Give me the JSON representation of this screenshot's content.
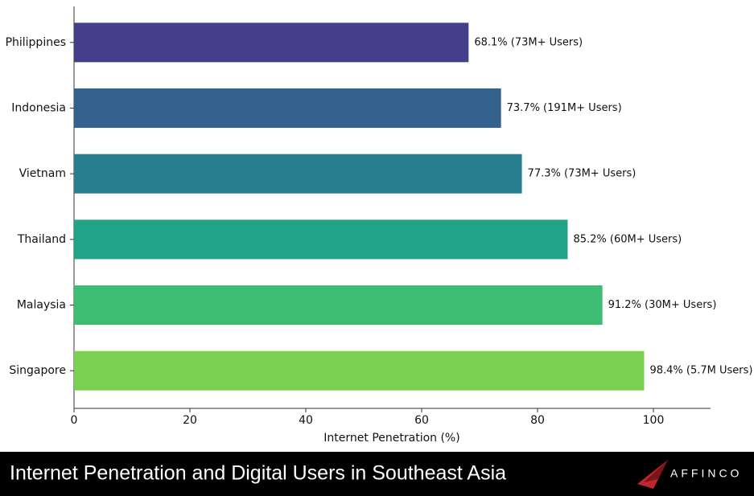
{
  "chart_data": {
    "type": "barh",
    "title": "Internet Penetration and Digital Users in Southeast Asia",
    "xlabel": "Internet Penetration (%)",
    "categories": [
      "Philippines",
      "Indonesia",
      "Vietnam",
      "Thailand",
      "Malaysia",
      "Singapore"
    ],
    "values": [
      68.1,
      73.7,
      77.3,
      85.2,
      91.2,
      98.4
    ],
    "value_labels": [
      "68.1% (73M+ Users)",
      "73.7% (191M+ Users)",
      "77.3% (73M+ Users)",
      "85.2% (60M+ Users)",
      "91.2% (30M+ Users)",
      "98.4% (5.7M Users)"
    ],
    "colors": [
      "#443f8a",
      "#33638d",
      "#287d8e",
      "#20a387",
      "#3dbc74",
      "#7ad151"
    ],
    "xlim": [
      0,
      110
    ],
    "xticks": [
      0,
      20,
      40,
      60,
      80,
      100
    ],
    "brand": "AFFINCO"
  }
}
